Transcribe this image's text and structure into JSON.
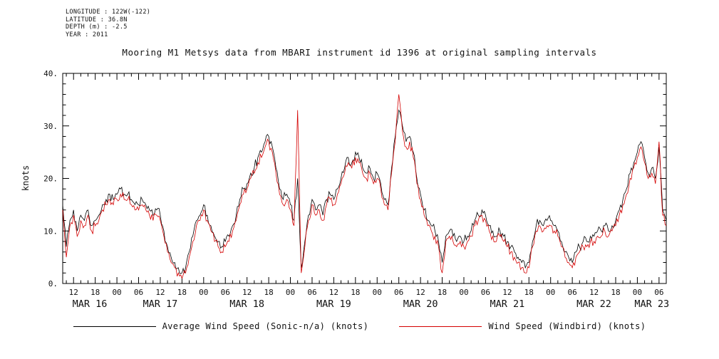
{
  "header": {
    "lines": [
      "LONGITUDE : 122W(-122)",
      "LATITUDE : 36.8N",
      "DEPTH (m) : -2.5",
      "YEAR : 2011"
    ]
  },
  "title": "Mooring M1 Metsys data from MBARI instrument id 1396 at original sampling intervals",
  "chart_data": {
    "type": "line",
    "title": "Mooring M1 Metsys data from MBARI instrument id 1396 at original sampling intervals",
    "xlabel": "",
    "ylabel": "knots",
    "ylim": [
      0,
      40
    ],
    "y_tick_values": [
      0,
      10,
      20,
      30,
      40
    ],
    "y_tick_labels": [
      "0.",
      "10.",
      "20.",
      "30.",
      "40."
    ],
    "y_minor_step": 2,
    "grid": false,
    "legend_position": "bottom",
    "time_axis": {
      "hours_total": 167,
      "first_major_hour": 3,
      "major_step_hours": 6,
      "minor_step_hours": 2,
      "sample_interval_hours": 1
    },
    "x_tick_labels": [
      "12",
      "18",
      "00",
      "06",
      "12",
      "18",
      "00",
      "06",
      "12",
      "18",
      "00",
      "06",
      "12",
      "18",
      "00",
      "06",
      "12",
      "18",
      "00",
      "06",
      "12",
      "18",
      "00",
      "06",
      "12",
      "18",
      "00",
      "06"
    ],
    "x_date_labels": [
      "MAR 16",
      "MAR 17",
      "MAR 18",
      "MAR 19",
      "MAR 20",
      "MAR 21",
      "MAR 22",
      "MAR 23"
    ],
    "x_date_center_hours": [
      7.5,
      27,
      51,
      75,
      99,
      123,
      147,
      163
    ],
    "series": [
      {
        "name": "Average Wind Speed (Sonic-n/a) (knots)",
        "color": "#000000",
        "values": [
          15,
          7,
          12,
          14,
          10,
          13,
          12,
          14,
          11,
          12,
          13,
          15,
          16,
          17,
          16,
          17,
          18,
          17,
          17,
          16,
          15,
          15,
          16,
          15,
          14,
          13,
          14,
          13,
          10,
          7,
          5,
          4,
          3,
          2,
          3,
          6,
          9,
          12,
          13,
          15,
          13,
          11,
          9,
          8,
          7,
          8,
          9,
          11,
          13,
          16,
          18,
          19,
          21,
          22,
          24,
          25,
          27,
          28,
          26,
          22,
          18,
          16,
          17,
          15,
          12,
          20,
          3,
          8,
          13,
          16,
          14,
          15,
          13,
          16,
          17,
          16,
          18,
          20,
          22,
          24,
          23,
          25,
          24,
          22,
          21,
          22,
          20,
          21,
          19,
          16,
          15,
          22,
          28,
          33,
          30,
          27,
          28,
          25,
          20,
          17,
          14,
          12,
          11,
          10,
          8,
          4,
          9,
          10,
          9,
          8,
          9,
          8,
          9,
          10,
          12,
          13,
          14,
          13,
          11,
          10,
          9,
          10,
          9,
          8,
          7,
          6,
          5,
          4,
          3,
          4,
          8,
          11,
          12,
          11,
          12,
          12,
          11,
          10,
          8,
          6,
          5,
          4,
          6,
          7,
          8,
          8,
          9,
          9,
          10,
          10,
          11,
          10,
          11,
          12,
          14,
          16,
          18,
          21,
          23,
          25,
          27,
          24,
          21,
          22,
          20,
          26,
          14,
          12
        ]
      },
      {
        "name": "Wind Speed (Windbird) (knots)",
        "color": "#d40000",
        "values": [
          14,
          5,
          11,
          13,
          9,
          12,
          11,
          13,
          10,
          11,
          12,
          14,
          15,
          16,
          15,
          16,
          17,
          16,
          16,
          15,
          14,
          14,
          15,
          14,
          13,
          12,
          13,
          12,
          9,
          6,
          4,
          3,
          2,
          1,
          2,
          5,
          8,
          11,
          12,
          14,
          12,
          10,
          8,
          7,
          6,
          7,
          8,
          10,
          12,
          15,
          17,
          18,
          20,
          21,
          23,
          24,
          26,
          27,
          25,
          21,
          17,
          15,
          16,
          14,
          11,
          33,
          2,
          7,
          12,
          15,
          13,
          14,
          12,
          15,
          16,
          15,
          17,
          19,
          21,
          23,
          22,
          24,
          23,
          21,
          20,
          21,
          19,
          20,
          18,
          15,
          14,
          21,
          27,
          36,
          29,
          26,
          27,
          24,
          19,
          16,
          13,
          11,
          10,
          9,
          7,
          2,
          8,
          9,
          8,
          7,
          8,
          7,
          8,
          9,
          11,
          12,
          13,
          12,
          10,
          9,
          8,
          9,
          8,
          7,
          6,
          5,
          4,
          3,
          2,
          3,
          7,
          10,
          11,
          10,
          11,
          11,
          10,
          9,
          7,
          5,
          4,
          3,
          5,
          6,
          7,
          7,
          8,
          8,
          9,
          9,
          10,
          9,
          10,
          11,
          13,
          15,
          17,
          20,
          22,
          24,
          26,
          23,
          20,
          21,
          19,
          27,
          13,
          11
        ]
      }
    ]
  },
  "legend": {
    "items": [
      {
        "label": "Average Wind Speed (Sonic-n/a) (knots)",
        "color": "#000000"
      },
      {
        "label": "Wind Speed (Windbird) (knots)",
        "color": "#d40000"
      }
    ]
  }
}
